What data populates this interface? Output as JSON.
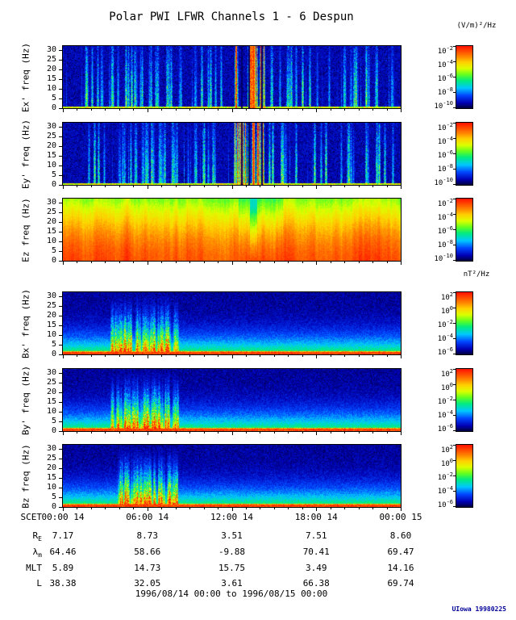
{
  "title": "Polar PWI LFWR Channels 1 - 6 Despun",
  "footer": "1996/08/14 00:00 to 1996/08/15 00:00",
  "credit": "UIowa 19980225",
  "colors": {
    "credit": "#000099",
    "axis": "#000000",
    "background": "#ffffff"
  },
  "chart_data": {
    "type": "heatmap",
    "title": "Polar PWI LFWR Channels 1 - 6 Despun",
    "subtitle": "1996/08/14 00:00 to 1996/08/15 00:00",
    "x_axis": {
      "prefix": "SCET",
      "ticks": [
        "00:00 14",
        "06:00 14",
        "12:00 14",
        "18:00 14",
        "00:00 15"
      ]
    },
    "y_axis": {
      "ticks": [
        0,
        5,
        10,
        15,
        20,
        25,
        30
      ],
      "range": [
        0,
        32
      ],
      "units": "freq (Hz)"
    },
    "colorbars": {
      "e_units": "(V/m)²/Hz",
      "b_units": "nT²/Hz",
      "e_range_exps": [
        "-2",
        "-4",
        "-6",
        "-8",
        "-10"
      ],
      "b_range_exps": [
        "2",
        "0",
        "-2",
        "-4",
        "-6"
      ]
    },
    "panels": [
      {
        "id": "ex",
        "ylabel": "Ex' freq (Hz)",
        "style": "E",
        "seed": 11,
        "colorbar_exps": [
          "-2",
          "-4",
          "-6",
          "-8",
          "-10"
        ]
      },
      {
        "id": "ey",
        "ylabel": "Ey' freq (Hz)",
        "style": "E",
        "seed": 87,
        "colorbar_exps": [
          "-2",
          "-4",
          "-6",
          "-8",
          "-10"
        ]
      },
      {
        "id": "ez",
        "ylabel": "Ez freq (Hz)",
        "style": "EZ",
        "seed": 5,
        "colorbar_exps": [
          "-2",
          "-4",
          "-6",
          "-8",
          "-10"
        ]
      },
      {
        "id": "bx",
        "ylabel": "Bx' freq (Hz)",
        "style": "B",
        "seed": 101,
        "colorbar_exps": [
          "2",
          "0",
          "-2",
          "-4",
          "-6"
        ]
      },
      {
        "id": "by",
        "ylabel": "By' freq (Hz)",
        "style": "B",
        "seed": 202,
        "colorbar_exps": [
          "2",
          "0",
          "-2",
          "-4",
          "-6"
        ]
      },
      {
        "id": "bz",
        "ylabel": "Bz freq (Hz)",
        "style": "B",
        "seed": 303,
        "colorbar_exps": [
          "2",
          "0",
          "-2",
          "-4",
          "-6"
        ]
      }
    ],
    "ephemeris": {
      "rows": [
        {
          "label": "R",
          "sub": "E",
          "values": [
            "7.17",
            "8.73",
            "3.51",
            "7.51",
            "8.60"
          ]
        },
        {
          "label": "λ",
          "sub": "m",
          "values": [
            "64.46",
            "58.66",
            "-9.88",
            "70.41",
            "69.47"
          ]
        },
        {
          "label": "MLT",
          "sub": "",
          "values": [
            "5.89",
            "14.73",
            "15.75",
            "3.49",
            "14.16"
          ]
        },
        {
          "label": "L",
          "sub": "",
          "values": [
            "38.38",
            "32.05",
            "3.61",
            "66.38",
            "69.74"
          ]
        }
      ]
    }
  }
}
